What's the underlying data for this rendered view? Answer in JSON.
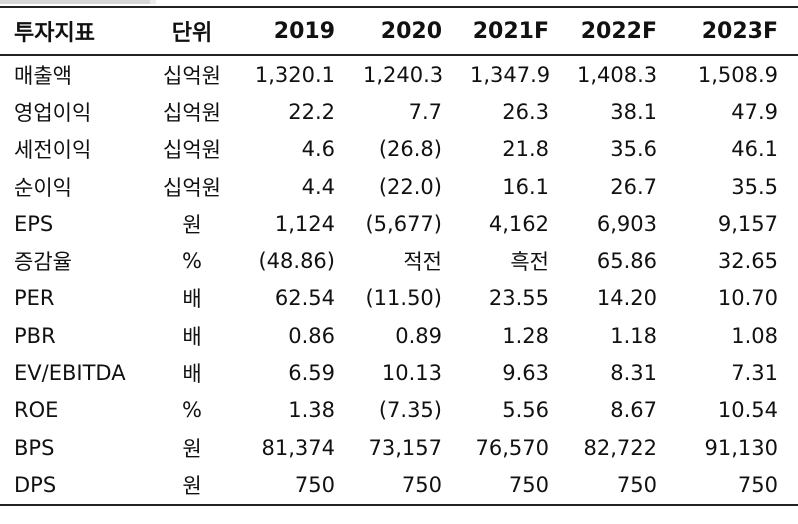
{
  "header": {
    "label": "투자지표",
    "unit": "단위",
    "years": [
      "2019",
      "2020",
      "2021F",
      "2022F",
      "2023F"
    ]
  },
  "rows": [
    {
      "label": "매출액",
      "unit": "십억원",
      "values": [
        "1,320.1",
        "1,240.3",
        "1,347.9",
        "1,408.3",
        "1,508.9"
      ]
    },
    {
      "label": "영업이익",
      "unit": "십억원",
      "values": [
        "22.2",
        "7.7",
        "26.3",
        "38.1",
        "47.9"
      ]
    },
    {
      "label": "세전이익",
      "unit": "십억원",
      "values": [
        "4.6",
        "(26.8)",
        "21.8",
        "35.6",
        "46.1"
      ]
    },
    {
      "label": "순이익",
      "unit": "십억원",
      "values": [
        "4.4",
        "(22.0)",
        "16.1",
        "26.7",
        "35.5"
      ]
    },
    {
      "label": "EPS",
      "unit": "원",
      "values": [
        "1,124",
        "(5,677)",
        "4,162",
        "6,903",
        "9,157"
      ]
    },
    {
      "label": "증감율",
      "unit": "%",
      "values": [
        "(48.86)",
        "적전",
        "흑전",
        "65.86",
        "32.65"
      ]
    },
    {
      "label": "PER",
      "unit": "배",
      "values": [
        "62.54",
        "(11.50)",
        "23.55",
        "14.20",
        "10.70"
      ]
    },
    {
      "label": "PBR",
      "unit": "배",
      "values": [
        "0.86",
        "0.89",
        "1.28",
        "1.18",
        "1.08"
      ]
    },
    {
      "label": "EV/EBITDA",
      "unit": "배",
      "values": [
        "6.59",
        "10.13",
        "9.63",
        "8.31",
        "7.31"
      ]
    },
    {
      "label": "ROE",
      "unit": "%",
      "values": [
        "1.38",
        "(7.35)",
        "5.56",
        "8.67",
        "10.54"
      ]
    },
    {
      "label": "BPS",
      "unit": "원",
      "values": [
        "81,374",
        "73,157",
        "76,570",
        "82,722",
        "91,130"
      ]
    },
    {
      "label": "DPS",
      "unit": "원",
      "values": [
        "750",
        "750",
        "750",
        "750",
        "750"
      ]
    }
  ]
}
